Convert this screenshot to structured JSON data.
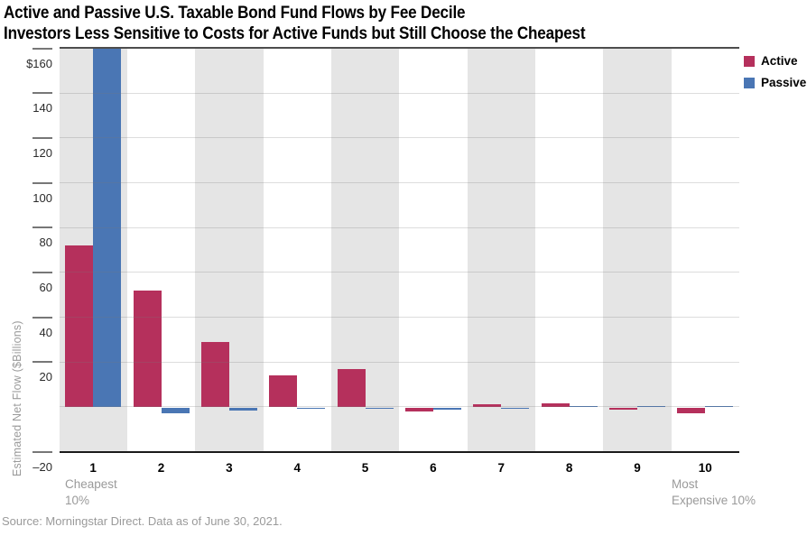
{
  "title": {
    "line1": "Active and Passive U.S. Taxable Bond Fund Flows by Fee Decile",
    "line2": "Investors Less Sensitive to Costs for Active Funds but Still Choose the Cheapest"
  },
  "legend": [
    {
      "label": "Active",
      "color": "#b5305c"
    },
    {
      "label": "Passive",
      "color": "#4a76b4"
    }
  ],
  "y_axis": {
    "title": "Estimated Net Flow ($Billions)",
    "ticks": [
      {
        "label": "$160",
        "value": 160
      },
      {
        "label": "140",
        "value": 140
      },
      {
        "label": "120",
        "value": 120
      },
      {
        "label": "100",
        "value": 100
      },
      {
        "label": "80",
        "value": 80
      },
      {
        "label": "60",
        "value": 60
      },
      {
        "label": "40",
        "value": 40
      },
      {
        "label": "20",
        "value": 20
      },
      {
        "label": "–20",
        "value": -20
      }
    ]
  },
  "x_axis": {
    "first_note_lines": [
      "Cheapest",
      "10%"
    ],
    "last_note_lines": [
      "Most",
      "Expensive 10%"
    ]
  },
  "source": "Source: Morningstar Direct. Data as of June 30, 2021.",
  "chart_data": {
    "type": "bar",
    "title": "Active and Passive U.S. Taxable Bond Fund Flows by Fee Decile",
    "subtitle": "Investors Less Sensitive to Costs for Active Funds but Still Choose the Cheapest",
    "ylabel": "Estimated Net Flow ($Billions)",
    "categories": [
      "1",
      "2",
      "3",
      "4",
      "5",
      "6",
      "7",
      "8",
      "9",
      "10"
    ],
    "series": [
      {
        "name": "Active",
        "color": "#b5305c",
        "values": [
          72,
          52,
          29,
          14,
          17,
          -1.5,
          1,
          1.4,
          -1,
          -2.5
        ]
      },
      {
        "name": "Passive",
        "color": "#4a76b4",
        "values": [
          166,
          -2.3,
          -1.3,
          -0.6,
          -0.4,
          -0.8,
          -0.4,
          0.2,
          0.2,
          0.2
        ]
      }
    ],
    "ylim": [
      -20,
      160
    ],
    "gridline_values": [
      140,
      120,
      100,
      80,
      60,
      40,
      20,
      0
    ],
    "shaded_deciles": [
      1,
      3,
      5,
      7,
      9
    ],
    "legend_position": "top-right",
    "note": "Passive decile-1 bar (~$166B) is clipped at the chart top ($160 line)"
  }
}
